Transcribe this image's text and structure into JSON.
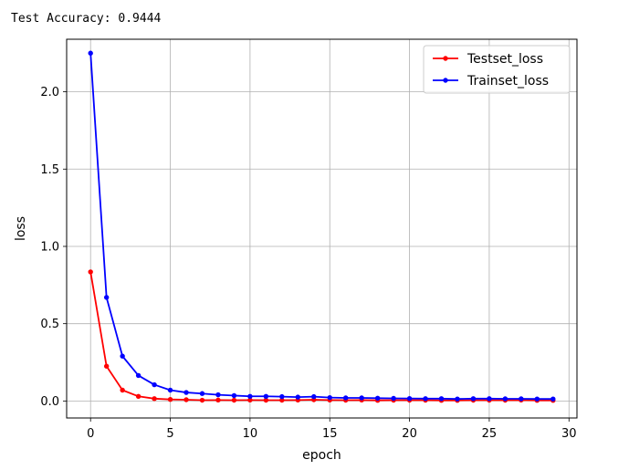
{
  "console": {
    "accuracy_text": "Test Accuracy: 0.9444"
  },
  "chart_data": {
    "type": "line",
    "title": "",
    "xlabel": "epoch",
    "ylabel": "loss",
    "xlim": [
      -1.5,
      30.5
    ],
    "ylim": [
      -0.11,
      2.34
    ],
    "xticks": [
      0,
      5,
      10,
      15,
      20,
      25,
      30
    ],
    "yticks": [
      0.0,
      0.5,
      1.0,
      1.5,
      2.0
    ],
    "xtick_labels": [
      "0",
      "5",
      "10",
      "15",
      "20",
      "25",
      "30"
    ],
    "ytick_labels": [
      "0.0",
      "0.5",
      "1.0",
      "1.5",
      "2.0"
    ],
    "grid": true,
    "legend_position": "top-right",
    "x": [
      0,
      1,
      2,
      3,
      4,
      5,
      6,
      7,
      8,
      9,
      10,
      11,
      12,
      13,
      14,
      15,
      16,
      17,
      18,
      19,
      20,
      21,
      22,
      23,
      24,
      25,
      26,
      27,
      28,
      29
    ],
    "series": [
      {
        "name": "Testset_loss",
        "color": "#ff0000",
        "values": [
          0.835,
          0.225,
          0.07,
          0.03,
          0.015,
          0.01,
          0.008,
          0.005,
          0.006,
          0.005,
          0.006,
          0.005,
          0.005,
          0.006,
          0.008,
          0.006,
          0.005,
          0.006,
          0.004,
          0.005,
          0.005,
          0.005,
          0.004,
          0.004,
          0.005,
          0.005,
          0.005,
          0.006,
          0.004,
          0.004
        ]
      },
      {
        "name": "Trainset_loss",
        "color": "#0000ff",
        "values": [
          2.25,
          0.67,
          0.29,
          0.165,
          0.105,
          0.07,
          0.055,
          0.048,
          0.04,
          0.035,
          0.03,
          0.03,
          0.028,
          0.025,
          0.028,
          0.022,
          0.02,
          0.02,
          0.018,
          0.017,
          0.016,
          0.015,
          0.015,
          0.013,
          0.015,
          0.015,
          0.014,
          0.014,
          0.013,
          0.013
        ]
      }
    ]
  }
}
